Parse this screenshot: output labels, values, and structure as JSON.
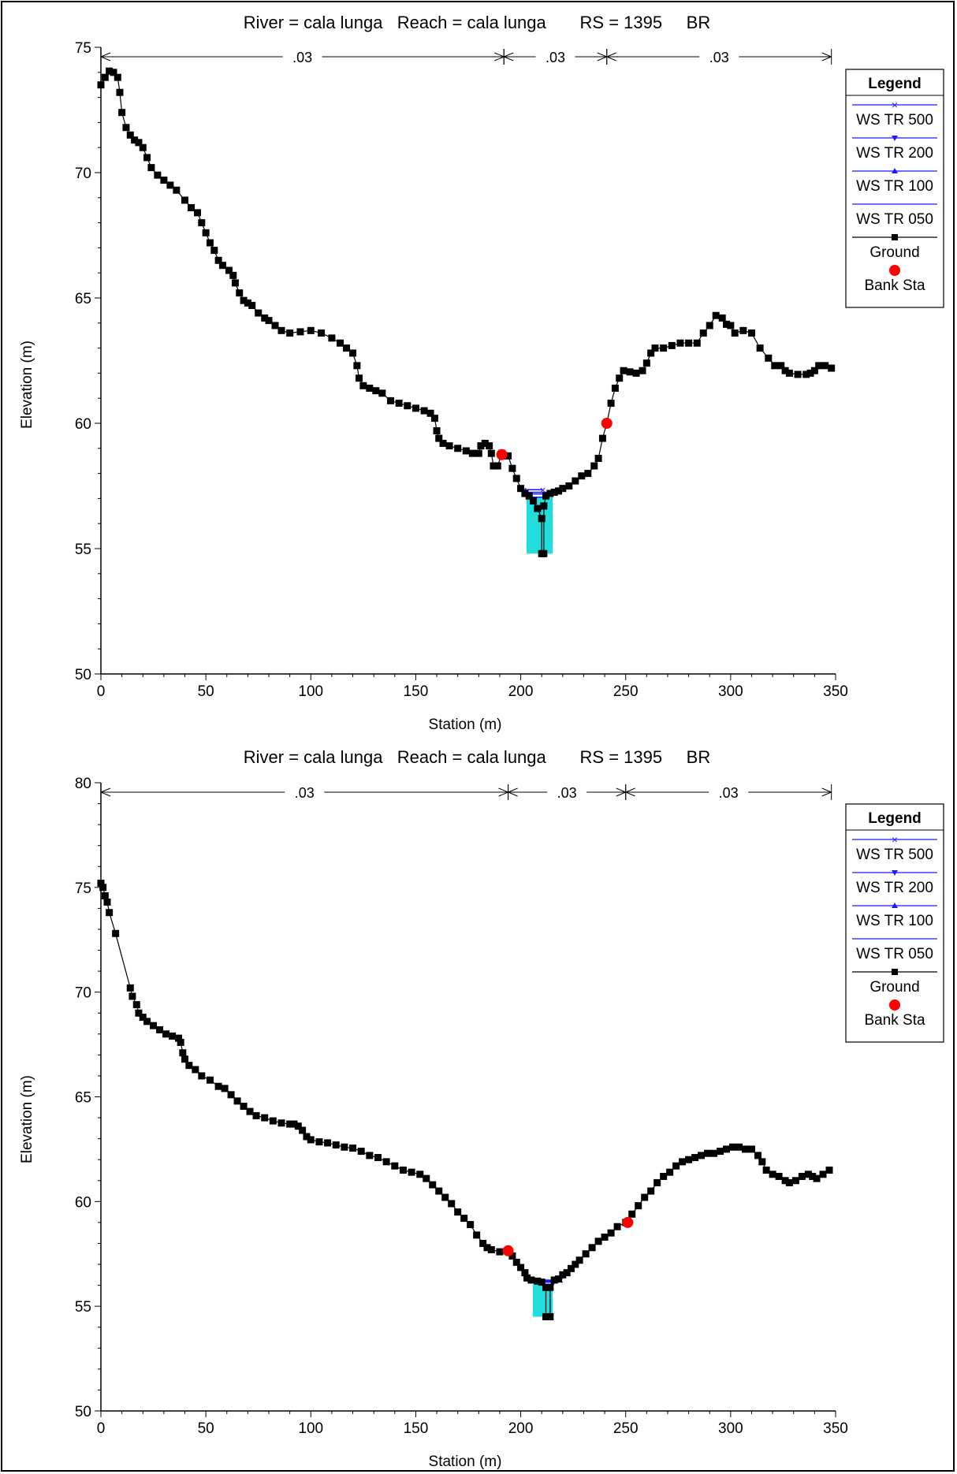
{
  "chart_data": [
    {
      "type": "line",
      "title": "River = cala lunga   Reach = cala lunga       RS = 1395     BR",
      "xlabel": "Station (m)",
      "ylabel": "Elevation (m)",
      "xlim": [
        0,
        350
      ],
      "ylim": [
        50,
        75
      ],
      "xticks": [
        "0",
        "50",
        "100",
        "150",
        "200",
        "250",
        "300",
        "350"
      ],
      "yticks": [
        "50",
        "55",
        "60",
        "65",
        "70",
        "75"
      ],
      "ytick_values": [
        50,
        55,
        60,
        65,
        70,
        75
      ],
      "mannings": [
        {
          "label": ".03",
          "from": 0,
          "to": 192
        },
        {
          "label": ".03",
          "from": 192,
          "to": 241
        },
        {
          "label": ".03",
          "from": 241,
          "to": 348
        }
      ],
      "legend": {
        "title": "Legend",
        "entries": [
          {
            "label": "WS TR 500",
            "color": "#1a1aff",
            "marker": "x"
          },
          {
            "label": "WS TR 200",
            "color": "#1a1aff",
            "marker": "tri-down"
          },
          {
            "label": "WS TR 100",
            "color": "#1a1aff",
            "marker": "tri-up"
          },
          {
            "label": "WS TR 050",
            "color": "#1a1aff",
            "marker": "none"
          },
          {
            "label": "Ground",
            "color": "#000000",
            "marker": "square"
          },
          {
            "label": "Bank Sta",
            "color": "#ff0000",
            "marker": "circle"
          }
        ]
      },
      "ground": [
        [
          0,
          73.5
        ],
        [
          2,
          73.8
        ],
        [
          4,
          74.05
        ],
        [
          6,
          74.0
        ],
        [
          8,
          73.8
        ],
        [
          9,
          73.2
        ],
        [
          10,
          72.4
        ],
        [
          12,
          71.8
        ],
        [
          14,
          71.5
        ],
        [
          16,
          71.3
        ],
        [
          18,
          71.2
        ],
        [
          20,
          71.0
        ],
        [
          22,
          70.6
        ],
        [
          24,
          70.2
        ],
        [
          27,
          69.9
        ],
        [
          30,
          69.7
        ],
        [
          33,
          69.5
        ],
        [
          36,
          69.3
        ],
        [
          40,
          68.9
        ],
        [
          43,
          68.6
        ],
        [
          46,
          68.4
        ],
        [
          48,
          68.0
        ],
        [
          50,
          67.6
        ],
        [
          52,
          67.2
        ],
        [
          54,
          66.9
        ],
        [
          56,
          66.5
        ],
        [
          58,
          66.3
        ],
        [
          61,
          66.1
        ],
        [
          63,
          65.9
        ],
        [
          64,
          65.6
        ],
        [
          66,
          65.2
        ],
        [
          68,
          64.9
        ],
        [
          70,
          64.8
        ],
        [
          72,
          64.7
        ],
        [
          75,
          64.4
        ],
        [
          78,
          64.2
        ],
        [
          80,
          64.1
        ],
        [
          83,
          63.9
        ],
        [
          86,
          63.7
        ],
        [
          90,
          63.6
        ],
        [
          95,
          63.65
        ],
        [
          100,
          63.7
        ],
        [
          105,
          63.6
        ],
        [
          110,
          63.4
        ],
        [
          114,
          63.2
        ],
        [
          117,
          63.0
        ],
        [
          120,
          62.8
        ],
        [
          122,
          62.3
        ],
        [
          123,
          61.8
        ],
        [
          125,
          61.5
        ],
        [
          128,
          61.4
        ],
        [
          131,
          61.3
        ],
        [
          134,
          61.2
        ],
        [
          138,
          60.9
        ],
        [
          142,
          60.8
        ],
        [
          146,
          60.7
        ],
        [
          150,
          60.6
        ],
        [
          154,
          60.5
        ],
        [
          157,
          60.4
        ],
        [
          159,
          60.2
        ],
        [
          160,
          59.7
        ],
        [
          161,
          59.4
        ],
        [
          163,
          59.2
        ],
        [
          166,
          59.1
        ],
        [
          170,
          59.0
        ],
        [
          174,
          58.9
        ],
        [
          177,
          58.8
        ],
        [
          180,
          58.8
        ],
        [
          181,
          59.1
        ],
        [
          183,
          59.2
        ],
        [
          185,
          59.1
        ],
        [
          186,
          58.8
        ],
        [
          187,
          58.3
        ],
        [
          189,
          58.3
        ],
        [
          191,
          58.8
        ],
        [
          194,
          58.7
        ],
        [
          196,
          58.2
        ],
        [
          198,
          57.8
        ],
        [
          200,
          57.4
        ],
        [
          202,
          57.2
        ],
        [
          204,
          57.1
        ],
        [
          206,
          56.9
        ],
        [
          208,
          56.6
        ],
        [
          210,
          56.2
        ],
        [
          210,
          54.8
        ],
        [
          211,
          54.8
        ],
        [
          211,
          56.7
        ],
        [
          212,
          57.1
        ],
        [
          214,
          57.2
        ],
        [
          216,
          57.25
        ],
        [
          218,
          57.3
        ],
        [
          220,
          57.4
        ],
        [
          223,
          57.5
        ],
        [
          226,
          57.7
        ],
        [
          229,
          57.9
        ],
        [
          232,
          58.0
        ],
        [
          235,
          58.3
        ],
        [
          237,
          58.6
        ],
        [
          239,
          59.4
        ],
        [
          241,
          60.0
        ],
        [
          243,
          60.8
        ],
        [
          245,
          61.4
        ],
        [
          247,
          61.8
        ],
        [
          249,
          62.1
        ],
        [
          252,
          62.05
        ],
        [
          255,
          62.0
        ],
        [
          258,
          62.1
        ],
        [
          260,
          62.4
        ],
        [
          262,
          62.8
        ],
        [
          264,
          63.0
        ],
        [
          268,
          63.0
        ],
        [
          272,
          63.1
        ],
        [
          276,
          63.2
        ],
        [
          280,
          63.2
        ],
        [
          284,
          63.2
        ],
        [
          287,
          63.6
        ],
        [
          290,
          63.9
        ],
        [
          293,
          64.3
        ],
        [
          296,
          64.2
        ],
        [
          298,
          63.95
        ],
        [
          300,
          63.9
        ],
        [
          302,
          63.6
        ],
        [
          306,
          63.7
        ],
        [
          310,
          63.6
        ],
        [
          314,
          63.0
        ],
        [
          318,
          62.6
        ],
        [
          321,
          62.3
        ],
        [
          324,
          62.3
        ],
        [
          326,
          62.1
        ],
        [
          328,
          62.0
        ],
        [
          332,
          61.95
        ],
        [
          336,
          61.95
        ],
        [
          338,
          62.0
        ],
        [
          340,
          62.1
        ],
        [
          342,
          62.3
        ],
        [
          345,
          62.3
        ],
        [
          348,
          62.2
        ]
      ],
      "bank_sta": [
        [
          191,
          58.75
        ],
        [
          241,
          60.0
        ]
      ],
      "water_surface": [
        {
          "name": "WS TR 500",
          "elev": 57.35,
          "x": [
            201.5,
            210.5
          ]
        },
        {
          "name": "WS TR 200",
          "elev": 57.25,
          "x": [
            202,
            215
          ]
        },
        {
          "name": "WS TR 100",
          "elev": 57.18,
          "x": [
            202.5,
            214
          ]
        },
        {
          "name": "WS TR 050",
          "elev": 57.05,
          "x": [
            203,
            213
          ]
        }
      ]
    },
    {
      "type": "line",
      "title": "River = cala lunga   Reach = cala lunga       RS = 1395     BR",
      "xlabel": "Station (m)",
      "ylabel": "Elevation (m)",
      "xlim": [
        0,
        350
      ],
      "ylim": [
        50,
        80
      ],
      "xticks": [
        "0",
        "50",
        "100",
        "150",
        "200",
        "250",
        "300",
        "350"
      ],
      "yticks": [
        "50",
        "55",
        "60",
        "65",
        "70",
        "75",
        "80"
      ],
      "ytick_values": [
        50,
        55,
        60,
        65,
        70,
        75,
        80
      ],
      "mannings": [
        {
          "label": ".03",
          "from": 0,
          "to": 194
        },
        {
          "label": ".03",
          "from": 194,
          "to": 250
        },
        {
          "label": ".03",
          "from": 250,
          "to": 348
        }
      ],
      "legend": {
        "title": "Legend",
        "entries": [
          {
            "label": "WS TR 500",
            "color": "#1a1aff",
            "marker": "x"
          },
          {
            "label": "WS TR 200",
            "color": "#1a1aff",
            "marker": "tri-down"
          },
          {
            "label": "WS TR 100",
            "color": "#1a1aff",
            "marker": "tri-up"
          },
          {
            "label": "WS TR 050",
            "color": "#1a1aff",
            "marker": "none"
          },
          {
            "label": "Ground",
            "color": "#000000",
            "marker": "square"
          },
          {
            "label": "Bank Sta",
            "color": "#ff0000",
            "marker": "circle"
          }
        ]
      },
      "ground": [
        [
          0,
          75.2
        ],
        [
          1,
          75.0
        ],
        [
          2,
          74.6
        ],
        [
          3,
          74.3
        ],
        [
          4,
          73.8
        ],
        [
          7,
          72.8
        ],
        [
          14,
          70.2
        ],
        [
          15,
          69.8
        ],
        [
          17,
          69.4
        ],
        [
          18,
          69.0
        ],
        [
          20,
          68.8
        ],
        [
          22,
          68.6
        ],
        [
          25,
          68.4
        ],
        [
          28,
          68.2
        ],
        [
          31,
          68.0
        ],
        [
          34,
          67.9
        ],
        [
          37,
          67.8
        ],
        [
          38,
          67.6
        ],
        [
          39,
          67.1
        ],
        [
          40,
          66.8
        ],
        [
          42,
          66.5
        ],
        [
          45,
          66.3
        ],
        [
          48,
          66.0
        ],
        [
          52,
          65.8
        ],
        [
          56,
          65.5
        ],
        [
          59,
          65.4
        ],
        [
          62,
          65.1
        ],
        [
          65,
          64.8
        ],
        [
          68,
          64.55
        ],
        [
          71,
          64.3
        ],
        [
          74,
          64.1
        ],
        [
          78,
          64.0
        ],
        [
          82,
          63.85
        ],
        [
          86,
          63.75
        ],
        [
          90,
          63.7
        ],
        [
          92,
          63.7
        ],
        [
          94,
          63.6
        ],
        [
          96,
          63.4
        ],
        [
          98,
          63.1
        ],
        [
          100,
          62.95
        ],
        [
          104,
          62.85
        ],
        [
          108,
          62.8
        ],
        [
          112,
          62.7
        ],
        [
          116,
          62.6
        ],
        [
          120,
          62.55
        ],
        [
          124,
          62.4
        ],
        [
          128,
          62.2
        ],
        [
          132,
          62.1
        ],
        [
          136,
          61.9
        ],
        [
          140,
          61.7
        ],
        [
          144,
          61.5
        ],
        [
          148,
          61.4
        ],
        [
          152,
          61.3
        ],
        [
          155,
          61.1
        ],
        [
          158,
          60.8
        ],
        [
          161,
          60.5
        ],
        [
          164,
          60.2
        ],
        [
          167,
          59.9
        ],
        [
          170,
          59.5
        ],
        [
          173,
          59.2
        ],
        [
          176,
          58.9
        ],
        [
          179,
          58.4
        ],
        [
          182,
          58.0
        ],
        [
          184,
          57.8
        ],
        [
          186,
          57.7
        ],
        [
          190,
          57.6
        ],
        [
          194,
          57.65
        ],
        [
          196,
          57.4
        ],
        [
          198,
          57.1
        ],
        [
          200,
          56.85
        ],
        [
          202,
          56.6
        ],
        [
          203,
          56.35
        ],
        [
          205,
          56.25
        ],
        [
          208,
          56.2
        ],
        [
          210,
          56.15
        ],
        [
          212,
          55.9
        ],
        [
          212,
          54.5
        ],
        [
          214,
          54.5
        ],
        [
          214,
          55.9
        ],
        [
          216,
          56.25
        ],
        [
          218,
          56.3
        ],
        [
          220,
          56.5
        ],
        [
          222,
          56.6
        ],
        [
          224,
          56.8
        ],
        [
          226,
          57.0
        ],
        [
          228,
          57.2
        ],
        [
          231,
          57.5
        ],
        [
          234,
          57.8
        ],
        [
          237,
          58.1
        ],
        [
          240,
          58.3
        ],
        [
          243,
          58.5
        ],
        [
          246,
          58.8
        ],
        [
          250,
          59.0
        ],
        [
          253,
          59.4
        ],
        [
          256,
          59.8
        ],
        [
          259,
          60.2
        ],
        [
          262,
          60.5
        ],
        [
          265,
          60.9
        ],
        [
          268,
          61.2
        ],
        [
          271,
          61.4
        ],
        [
          274,
          61.7
        ],
        [
          277,
          61.9
        ],
        [
          280,
          62.0
        ],
        [
          283,
          62.1
        ],
        [
          286,
          62.2
        ],
        [
          289,
          62.3
        ],
        [
          292,
          62.3
        ],
        [
          295,
          62.4
        ],
        [
          298,
          62.5
        ],
        [
          301,
          62.6
        ],
        [
          304,
          62.6
        ],
        [
          307,
          62.5
        ],
        [
          310,
          62.5
        ],
        [
          313,
          62.2
        ],
        [
          315,
          61.9
        ],
        [
          317,
          61.5
        ],
        [
          320,
          61.3
        ],
        [
          323,
          61.2
        ],
        [
          326,
          61.0
        ],
        [
          328,
          60.9
        ],
        [
          331,
          61.0
        ],
        [
          334,
          61.2
        ],
        [
          337,
          61.3
        ],
        [
          339,
          61.2
        ],
        [
          341,
          61.1
        ],
        [
          344,
          61.3
        ],
        [
          347,
          61.5
        ]
      ],
      "bank_sta": [
        [
          194,
          57.65
        ],
        [
          251,
          59.0
        ]
      ],
      "water_surface": [
        {
          "name": "WS TR 500",
          "elev": 56.25,
          "x": [
            205,
            219
          ]
        },
        {
          "name": "WS TR 200",
          "elev": 56.2,
          "x": [
            206,
            218
          ]
        },
        {
          "name": "WS TR 100",
          "elev": 56.15,
          "x": [
            207,
            217
          ]
        },
        {
          "name": "WS TR 050",
          "elev": 56.05,
          "x": [
            208,
            216
          ]
        }
      ]
    }
  ]
}
